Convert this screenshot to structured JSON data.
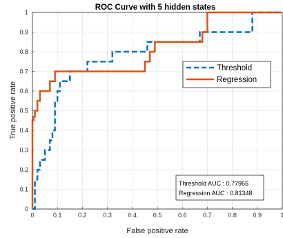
{
  "chart_data": {
    "type": "line",
    "title": "ROC Curve with 5 hidden states",
    "xlabel": "False positive rate",
    "ylabel": "True positive rate",
    "xlim": [
      0,
      1
    ],
    "ylim": [
      0,
      1
    ],
    "grid": true,
    "x_ticks": [
      "0",
      "0.1",
      "0.2",
      "0.3",
      "0.4",
      "0.5",
      "0.6",
      "0.7",
      "0.8",
      "0.9",
      "1"
    ],
    "y_ticks": [
      "0",
      "0.1",
      "0.2",
      "0.3",
      "0.4",
      "0.5",
      "0.6",
      "0.7",
      "0.8",
      "0.9",
      "1"
    ],
    "legend_position": "upper-right",
    "series": [
      {
        "name": "Threshold",
        "color": "#0072BD",
        "style": "dashed",
        "x": [
          0,
          0.01,
          0.01,
          0.02,
          0.02,
          0.03,
          0.03,
          0.05,
          0.05,
          0.07,
          0.07,
          0.08,
          0.08,
          0.09,
          0.09,
          0.1,
          0.1,
          0.11,
          0.11,
          0.15,
          0.15,
          0.22,
          0.22,
          0.24,
          0.24,
          0.32,
          0.32,
          0.4,
          0.4,
          0.46,
          0.46,
          0.67,
          0.67,
          0.68,
          0.68,
          0.7,
          0.7,
          0.72,
          0.72,
          0.88,
          0.88,
          1.0
        ],
        "y": [
          0,
          0,
          0.15,
          0.15,
          0.2,
          0.2,
          0.25,
          0.25,
          0.3,
          0.3,
          0.35,
          0.35,
          0.4,
          0.4,
          0.55,
          0.55,
          0.6,
          0.6,
          0.65,
          0.65,
          0.7,
          0.7,
          0.75,
          0.75,
          0.75,
          0.75,
          0.8,
          0.8,
          0.8,
          0.8,
          0.85,
          0.85,
          0.9,
          0.9,
          0.9,
          0.9,
          0.9,
          0.9,
          0.9,
          0.9,
          1.0,
          1.0
        ]
      },
      {
        "name": "Regression",
        "color": "#D95319",
        "style": "solid",
        "x": [
          0,
          0,
          0.005,
          0.005,
          0.01,
          0.01,
          0.02,
          0.02,
          0.03,
          0.03,
          0.05,
          0.05,
          0.07,
          0.07,
          0.09,
          0.09,
          0.45,
          0.45,
          0.47,
          0.47,
          0.49,
          0.49,
          0.66,
          0.66,
          0.68,
          0.68,
          0.7,
          0.7,
          1.0
        ],
        "y": [
          0,
          0.45,
          0.45,
          0.47,
          0.47,
          0.5,
          0.5,
          0.55,
          0.55,
          0.6,
          0.6,
          0.6,
          0.6,
          0.65,
          0.65,
          0.7,
          0.7,
          0.75,
          0.75,
          0.8,
          0.8,
          0.85,
          0.85,
          0.85,
          0.85,
          0.9,
          0.9,
          1.0,
          1.0
        ]
      }
    ],
    "annotation": {
      "lines": [
        "Threshold AUC : 0.77965",
        "Regression AUC : 0.81348"
      ]
    }
  }
}
